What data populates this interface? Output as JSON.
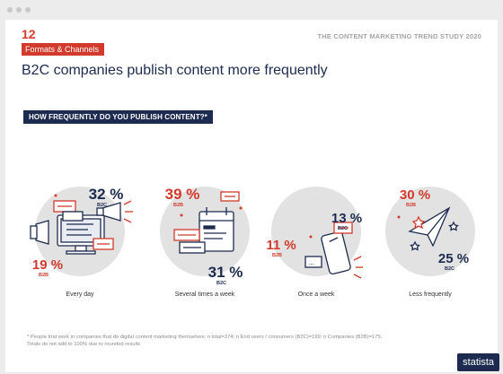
{
  "header": {
    "page_number": "12",
    "section_tag": "Formats & Channels",
    "study_title": "THE CONTENT MARKETING TREND STUDY 2020",
    "headline": "B2C companies publish content more frequently"
  },
  "question": "HOW FREQUENTLY DO YOU PUBLISH CONTENT?*",
  "colors": {
    "b2b": "#d23a2b",
    "b2c": "#1c2b4f",
    "circle": "#e2e2e2"
  },
  "chart_data": {
    "type": "bar",
    "title": "HOW FREQUENTLY DO YOU PUBLISH CONTENT?*",
    "categories": [
      "Every day",
      "Several times a week",
      "Once a week",
      "Less frequently"
    ],
    "series": [
      {
        "name": "B2C",
        "values": [
          32,
          31,
          13,
          25
        ]
      },
      {
        "name": "B2B",
        "values": [
          19,
          39,
          11,
          30
        ]
      }
    ],
    "unit": "%",
    "xlabel": "",
    "ylabel": "",
    "ylim": [
      0,
      100
    ]
  },
  "footnote": {
    "line1": "* People that work in companies that do digital content marketing themselves; n total=374; n End users / consumers (B2C)=199; n Companies (B2B)=175;",
    "line2": "Totals do not add to 100% due to rounded results"
  },
  "brand": "statista"
}
